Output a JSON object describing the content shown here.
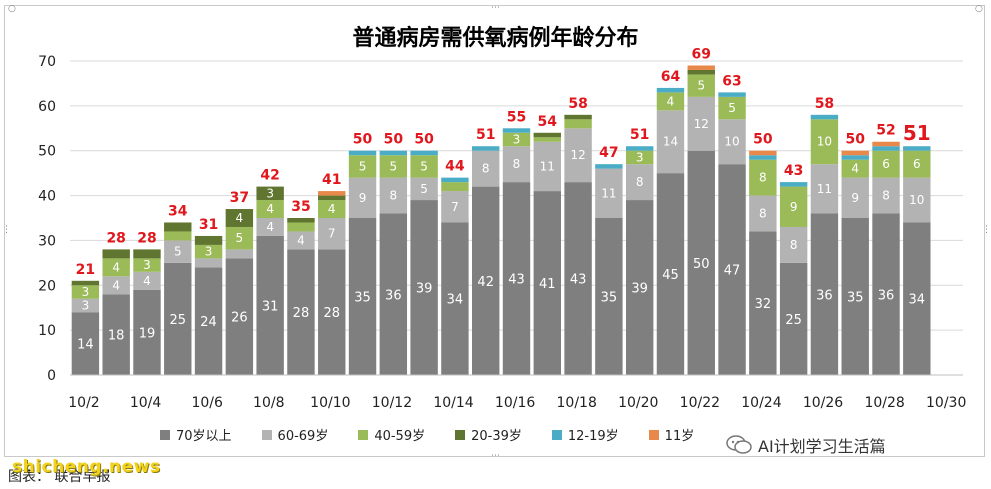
{
  "chart_data": {
    "type": "bar",
    "stacked": true,
    "title": "普通病房需供氧病例年龄分布",
    "ylim": [
      0,
      70
    ],
    "yticks": [
      0,
      10,
      20,
      30,
      40,
      50,
      60,
      70
    ],
    "categories": [
      "10/2",
      "10/3",
      "10/4",
      "10/5",
      "10/6",
      "10/7",
      "10/8",
      "10/9",
      "10/10",
      "10/11",
      "10/12",
      "10/13",
      "10/14",
      "10/15",
      "10/16",
      "10/17",
      "10/18",
      "10/19",
      "10/20",
      "10/21",
      "10/22",
      "10/23",
      "10/24",
      "10/25",
      "10/26",
      "10/27",
      "10/28",
      "10/29"
    ],
    "xtick_labels": [
      "10/2",
      "10/4",
      "10/6",
      "10/8",
      "10/10",
      "10/12",
      "10/14",
      "10/16",
      "10/18",
      "10/20",
      "10/22",
      "10/24",
      "10/26",
      "10/28",
      "10/30"
    ],
    "totals": [
      21,
      28,
      28,
      34,
      31,
      37,
      42,
      35,
      41,
      50,
      50,
      50,
      44,
      51,
      55,
      54,
      58,
      47,
      51,
      64,
      69,
      63,
      50,
      43,
      58,
      50,
      52,
      51
    ],
    "series": [
      {
        "name": "70岁以上",
        "color": "#7f7f7f",
        "values": [
          14,
          18,
          19,
          25,
          24,
          26,
          31,
          28,
          28,
          35,
          36,
          39,
          34,
          42,
          43,
          41,
          43,
          35,
          39,
          45,
          50,
          47,
          32,
          25,
          36,
          35,
          36,
          34
        ]
      },
      {
        "name": "60-69岁",
        "color": "#b3b3b3",
        "values": [
          3,
          4,
          4,
          5,
          2,
          2,
          4,
          4,
          7,
          9,
          8,
          5,
          7,
          8,
          8,
          11,
          12,
          11,
          8,
          14,
          12,
          10,
          8,
          8,
          11,
          9,
          8,
          10
        ]
      },
      {
        "name": "40-59岁",
        "color": "#9bbb59",
        "values": [
          3,
          4,
          3,
          2,
          3,
          5,
          4,
          2,
          4,
          5,
          5,
          5,
          2,
          0,
          3,
          1,
          2,
          0,
          3,
          4,
          5,
          5,
          8,
          9,
          10,
          4,
          6,
          6
        ]
      },
      {
        "name": "20-39岁",
        "color": "#5f7530",
        "values": [
          1,
          2,
          2,
          2,
          2,
          4,
          3,
          1,
          1,
          0,
          0,
          0,
          0,
          0,
          0,
          1,
          1,
          0,
          0,
          0,
          1,
          0,
          0,
          0,
          0,
          0,
          0,
          0
        ]
      },
      {
        "name": "12-19岁",
        "color": "#4bacc6",
        "values": [
          0,
          0,
          0,
          0,
          0,
          0,
          0,
          0,
          0,
          1,
          1,
          1,
          1,
          1,
          1,
          0,
          0,
          1,
          1,
          1,
          0,
          1,
          1,
          1,
          1,
          1,
          1,
          1
        ]
      },
      {
        "name": "11岁",
        "color": "#e8884a",
        "values": [
          0,
          0,
          0,
          0,
          0,
          0,
          0,
          0,
          1,
          0,
          0,
          0,
          0,
          0,
          0,
          0,
          0,
          0,
          0,
          0,
          1,
          0,
          1,
          0,
          0,
          1,
          1,
          0
        ]
      }
    ]
  },
  "footer": {
    "watermark": "shicheng.news",
    "caption": "图表：   联合早报",
    "account": "AI计划学习生活篇"
  },
  "icons": {
    "wechat": "wechat-icon"
  }
}
